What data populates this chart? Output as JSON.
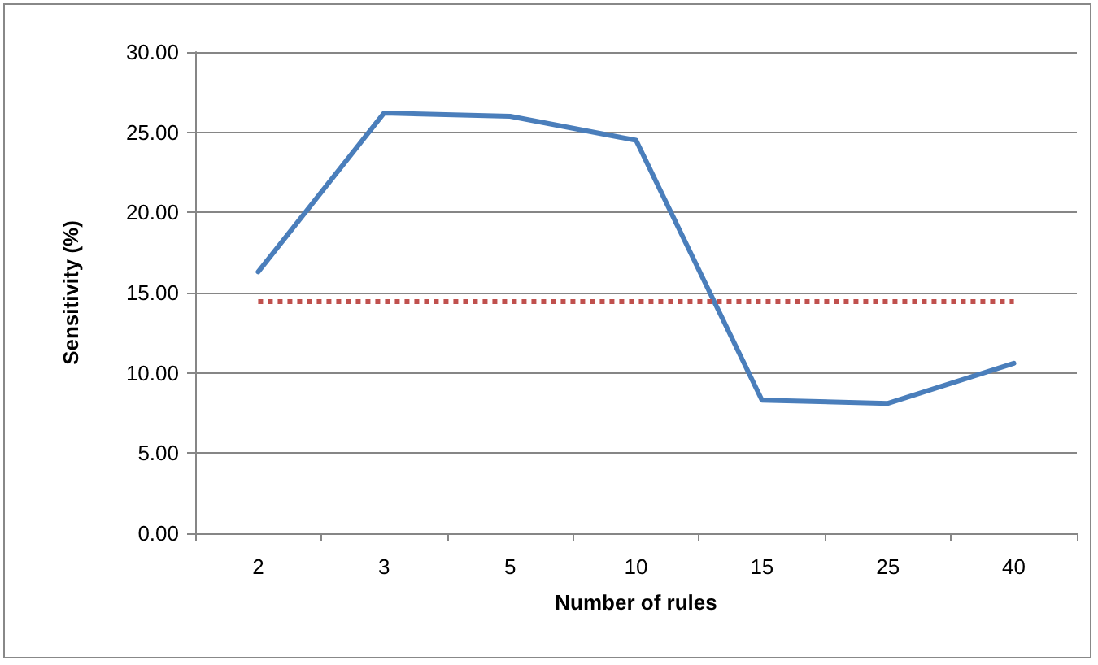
{
  "chart_data": {
    "type": "line",
    "xlabel": "Number of rules",
    "ylabel": "Sensitivity (%)",
    "categories": [
      "2",
      "3",
      "5",
      "10",
      "15",
      "25",
      "40"
    ],
    "series": [
      {
        "color": "#4a7ebb",
        "values": [
          16.3,
          26.2,
          26.0,
          24.5,
          8.3,
          8.1,
          10.6
        ]
      }
    ],
    "ylim": [
      0,
      30
    ],
    "yticks": [
      {
        "value": 0,
        "label": "0.00"
      },
      {
        "value": 5,
        "label": "5.00"
      },
      {
        "value": 10,
        "label": "10.00"
      },
      {
        "value": 15,
        "label": "15.00"
      },
      {
        "value": 20,
        "label": "20.00"
      },
      {
        "value": 25,
        "label": "25.00"
      },
      {
        "value": 30,
        "label": "30.00"
      }
    ],
    "ref_lines": [
      {
        "axis": "y",
        "value": 14.5,
        "color": "#c0504d",
        "line_style": "dotted"
      }
    ],
    "grid": "y",
    "marker": "none",
    "line_style": "solid"
  }
}
